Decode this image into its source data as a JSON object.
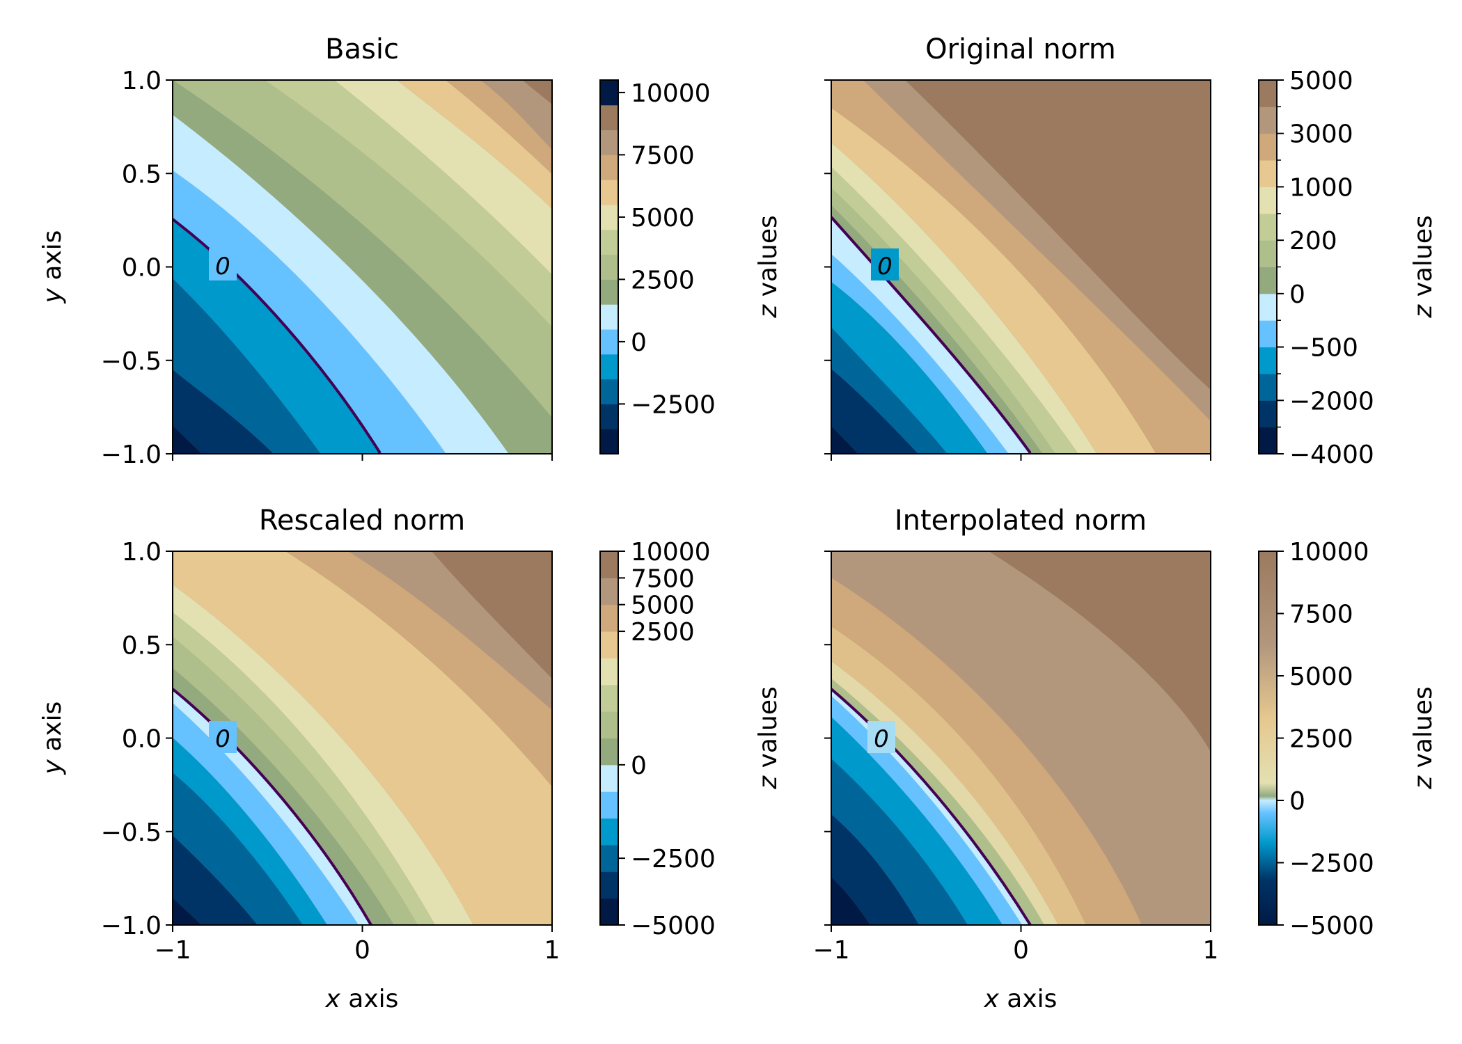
{
  "chart_data": [
    {
      "type": "heatmap",
      "title": "Basic",
      "xlabel": "",
      "ylabel": "y axis",
      "xlim": [
        -1,
        1
      ],
      "ylim": [
        -1,
        1
      ],
      "x_ticks": [
        "−1",
        "0",
        "1"
      ],
      "y_ticks": [
        "−1.0",
        "−0.5",
        "0.0",
        "0.5",
        "1.0"
      ],
      "y_tick_values": [
        -1.0,
        -0.5,
        0.0,
        0.5,
        1.0
      ],
      "show_x_tick_labels": false,
      "show_y_tick_labels": true,
      "contour_label": "0",
      "colorbar": {
        "label": "z values",
        "style": "discrete",
        "range": [
          -4500,
          10500
        ],
        "bounds": [
          -4500,
          -3500,
          -2500,
          -1500,
          -500,
          500,
          1500,
          2500,
          3500,
          4500,
          5500,
          6500,
          7500,
          8500,
          9500,
          10500
        ],
        "ticks": [
          10000,
          7500,
          5000,
          2500,
          0,
          -2500
        ],
        "tick_labels": [
          "10000",
          "7500",
          "5000",
          "2500",
          "0",
          "−2500"
        ],
        "minor_ticks": []
      }
    },
    {
      "type": "heatmap",
      "title": "Original norm",
      "xlabel": "",
      "ylabel": "",
      "xlim": [
        -1,
        1
      ],
      "ylim": [
        -1,
        1
      ],
      "x_ticks": [
        "−1",
        "0",
        "1"
      ],
      "y_ticks": [
        "−1.0",
        "−0.5",
        "0.0",
        "0.5",
        "1.0"
      ],
      "y_tick_values": [
        -1.0,
        -0.5,
        0.0,
        0.5,
        1.0
      ],
      "show_x_tick_labels": false,
      "show_y_tick_labels": false,
      "contour_label": "0",
      "colorbar": {
        "label": "z values",
        "style": "discrete",
        "range": [
          -4000,
          5000
        ],
        "bounds": [
          -4000,
          -3000,
          -2000,
          -1000,
          -500,
          -200,
          0,
          100,
          200,
          500,
          1000,
          2000,
          3000,
          4000,
          5000
        ],
        "ticks": [
          5000,
          3000,
          1000,
          200,
          0,
          -500,
          -2000,
          -4000
        ],
        "tick_labels": [
          "5000",
          "3000",
          "1000",
          "200",
          "0",
          "−500",
          "−2000",
          "−4000"
        ],
        "minor_ticks": [
          4000,
          2000,
          500,
          100,
          -200,
          -1000,
          -3000
        ]
      }
    },
    {
      "type": "heatmap",
      "title": "Rescaled norm",
      "xlabel": "x axis",
      "ylabel": "y axis",
      "xlim": [
        -1,
        1
      ],
      "ylim": [
        -1,
        1
      ],
      "x_ticks": [
        "−1",
        "0",
        "1"
      ],
      "y_ticks": [
        "−1.0",
        "−0.5",
        "0.0",
        "0.5",
        "1.0"
      ],
      "y_tick_values": [
        -1.0,
        -0.5,
        0.0,
        0.5,
        1.0
      ],
      "show_x_tick_labels": true,
      "show_y_tick_labels": true,
      "contour_label": "0",
      "colorbar": {
        "label": "z values",
        "style": "discrete",
        "range": [
          -5000,
          10000
        ],
        "bounds": [
          -5000,
          -4000,
          -3000,
          -2000,
          -1000,
          -500,
          0,
          500,
          1000,
          1500,
          2000,
          2500,
          5000,
          7500,
          10000
        ],
        "ticks": [
          10000,
          7500,
          5000,
          2500,
          0,
          -2500,
          -5000
        ],
        "tick_labels": [
          "10000",
          "7500",
          "5000",
          "2500",
          "0",
          "−2500",
          "−5000"
        ],
        "minor_ticks": []
      }
    },
    {
      "type": "heatmap",
      "title": "Interpolated norm",
      "xlabel": "x axis",
      "ylabel": "",
      "xlim": [
        -1,
        1
      ],
      "ylim": [
        -1,
        1
      ],
      "x_ticks": [
        "−1",
        "0",
        "1"
      ],
      "y_ticks": [
        "−1.0",
        "−0.5",
        "0.0",
        "0.5",
        "1.0"
      ],
      "y_tick_values": [
        -1.0,
        -0.5,
        0.0,
        0.5,
        1.0
      ],
      "show_x_tick_labels": true,
      "show_y_tick_labels": false,
      "contour_label": "0",
      "colorbar": {
        "label": "z values",
        "style": "continuous",
        "range": [
          -5000,
          10000
        ],
        "bounds": [],
        "ticks": [
          10000,
          7500,
          5000,
          2500,
          0,
          -2500,
          -5000
        ],
        "tick_labels": [
          "10000",
          "7500",
          "5000",
          "2500",
          "0",
          "−2500",
          "−5000"
        ],
        "minor_ticks": []
      }
    }
  ],
  "colors": {
    "palette": [
      "#001a45",
      "#003366",
      "#006699",
      "#0099cc",
      "#66c2ff",
      "#c6ecff",
      "#93aa7e",
      "#aebf8c",
      "#c1cc97",
      "#e3e0b2",
      "#e6c890",
      "#cfa87c",
      "#b3977d",
      "#9b7a5f"
    ],
    "contour": "#440154"
  }
}
